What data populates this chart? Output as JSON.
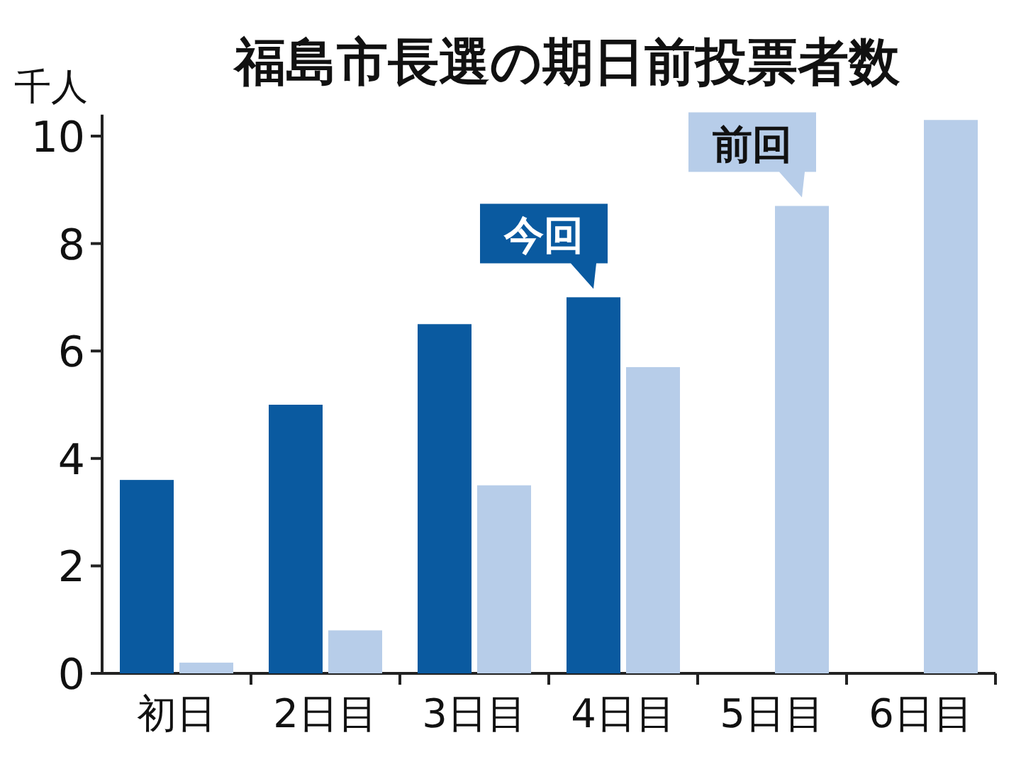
{
  "chart_data": {
    "type": "bar",
    "title": "福島市長選の期日前投票者数",
    "ylabel": "千人",
    "categories": [
      "初日",
      "2日目",
      "3日目",
      "4日目",
      "5日目",
      "6日目"
    ],
    "series": [
      {
        "name": "今回",
        "color": "#0a5aa0",
        "values": [
          3.6,
          5.0,
          6.5,
          7.0,
          null,
          null
        ]
      },
      {
        "name": "前回",
        "color": "#b7cde9",
        "values": [
          0.2,
          0.8,
          3.5,
          5.7,
          8.7,
          10.3
        ]
      }
    ],
    "ylim": [
      0,
      10.4
    ],
    "yticks": [
      0,
      2,
      4,
      6,
      8,
      10
    ]
  }
}
